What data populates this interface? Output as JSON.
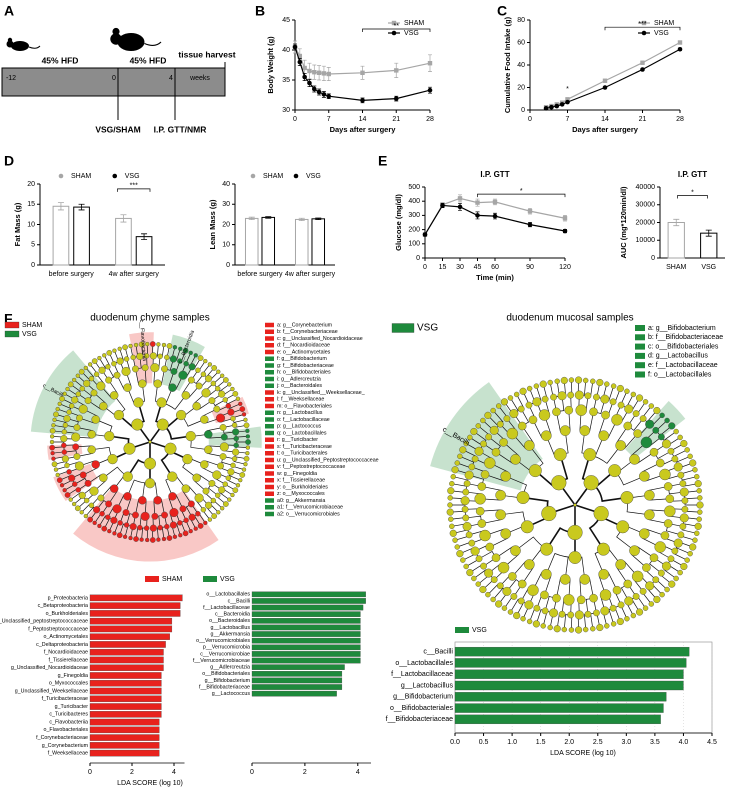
{
  "panel_labels": [
    "A",
    "B",
    "C",
    "D",
    "E",
    "F"
  ],
  "timeline": {
    "diet": [
      "45% HFD",
      "45% HFD"
    ],
    "ticks": [
      "-12",
      "0",
      "4"
    ],
    "unit": "weeks",
    "end": "tissue harvest",
    "events": [
      "VSG/SHAM",
      "I.P. GTT/NMR"
    ]
  },
  "chart_data": [
    {
      "type": "line",
      "ylabel": "Body Weight (g)",
      "xlabel": "Days after surgery",
      "legend": "upper right",
      "x": [
        0,
        1,
        2,
        3,
        4,
        5,
        6,
        7,
        14,
        21,
        28
      ],
      "xlim": [
        0,
        28
      ],
      "xticks": [
        0,
        7,
        14,
        21,
        28
      ],
      "ylim": [
        30,
        45
      ],
      "yticks": [
        30,
        35,
        40,
        45
      ],
      "series": [
        {
          "name": "SHAM",
          "color": "#a6a6a6",
          "marker": "square",
          "values": [
            40.5,
            39,
            37,
            36.5,
            36.3,
            36.2,
            36.1,
            36,
            36.2,
            36.6,
            37.8
          ],
          "errors": [
            1,
            1.2,
            1.3,
            1.3,
            1.2,
            1.2,
            1.2,
            1.1,
            1.1,
            1.2,
            1.4
          ]
        },
        {
          "name": "VSG",
          "color": "#000000",
          "marker": "circle",
          "values": [
            40.5,
            38,
            35.5,
            34.5,
            33.5,
            33,
            32.6,
            32.3,
            31.6,
            31.9,
            33.3
          ],
          "errors": [
            0.5,
            0.6,
            0.6,
            0.6,
            0.5,
            0.5,
            0.5,
            0.4,
            0.4,
            0.4,
            0.5
          ]
        }
      ],
      "annotations": [
        "**"
      ]
    },
    {
      "type": "line",
      "ylabel": "Cumulative Food Intake (g)",
      "xlabel": "Days after surgery",
      "legend": "upper right",
      "x": [
        3,
        4,
        5,
        6,
        7,
        14,
        21,
        28
      ],
      "xlim": [
        0,
        28
      ],
      "xticks": [
        0,
        7,
        14,
        21,
        28
      ],
      "ylim": [
        0,
        80
      ],
      "yticks": [
        0,
        20,
        40,
        60,
        80
      ],
      "series": [
        {
          "name": "SHAM",
          "color": "#a6a6a6",
          "marker": "square",
          "values": [
            2.5,
            3.5,
            5,
            6.5,
            9.5,
            26,
            42,
            60
          ],
          "errors": [
            0.3,
            0.3,
            0.4,
            0.4,
            0.5,
            0.8,
            1,
            1.2
          ]
        },
        {
          "name": "VSG",
          "color": "#000000",
          "marker": "circle",
          "values": [
            1.5,
            2.5,
            3.5,
            5,
            7,
            20,
            36,
            54
          ],
          "errors": [
            0.2,
            0.3,
            0.3,
            0.3,
            0.4,
            0.6,
            0.8,
            1
          ]
        }
      ],
      "annotations": [
        "*",
        "***"
      ]
    },
    {
      "type": "bar",
      "ylabel": "Fat Mass (g)",
      "legend": "top",
      "categories": [
        "before surgery",
        "4w after surgery"
      ],
      "ylim": [
        0,
        20
      ],
      "yticks": [
        0,
        5,
        10,
        15,
        20
      ],
      "series": [
        {
          "name": "SHAM",
          "color": "#a6a6a6",
          "values": [
            14.5,
            11.5
          ],
          "errors": [
            0.9,
            0.9
          ]
        },
        {
          "name": "VSG",
          "color": "#000000",
          "values": [
            14.3,
            7
          ],
          "errors": [
            0.7,
            0.7
          ]
        }
      ],
      "annotations": [
        "***"
      ]
    },
    {
      "type": "bar",
      "ylabel": "Lean Mass (g)",
      "legend": "top",
      "categories": [
        "before surgery",
        "4w after surgery"
      ],
      "ylim": [
        0,
        40
      ],
      "yticks": [
        0,
        10,
        20,
        30,
        40
      ],
      "series": [
        {
          "name": "SHAM",
          "color": "#a6a6a6",
          "values": [
            23,
            22.5
          ],
          "errors": [
            0.6,
            0.6
          ]
        },
        {
          "name": "VSG",
          "color": "#000000",
          "values": [
            23.5,
            22.8
          ],
          "errors": [
            0.4,
            0.4
          ]
        }
      ]
    },
    {
      "type": "line",
      "title": "I.P. GTT",
      "ylabel": "Glucose (mg/dl)",
      "xlabel": "Time (min)",
      "x": [
        0,
        15,
        30,
        45,
        60,
        90,
        120
      ],
      "xlim": [
        0,
        120
      ],
      "xticks": [
        0,
        15,
        30,
        45,
        60,
        90,
        120
      ],
      "ylim": [
        0,
        500
      ],
      "yticks": [
        0,
        100,
        200,
        300,
        400,
        500
      ],
      "series": [
        {
          "name": "SHAM",
          "color": "#a6a6a6",
          "marker": "square",
          "values": [
            165,
            375,
            420,
            390,
            395,
            330,
            280
          ],
          "errors": [
            10,
            15,
            25,
            25,
            20,
            20,
            20
          ]
        },
        {
          "name": "VSG",
          "color": "#000000",
          "marker": "circle",
          "values": [
            165,
            370,
            360,
            300,
            295,
            235,
            190
          ],
          "errors": [
            10,
            15,
            25,
            25,
            20,
            15,
            12
          ]
        }
      ],
      "annotations": [
        "*"
      ]
    },
    {
      "type": "bar",
      "title": "I.P. GTT",
      "ylabel": "AUC (mg*120min/dl)",
      "categories": [
        "SHAM",
        "VSG"
      ],
      "values": [
        20000,
        14000
      ],
      "errors": [
        1800,
        1700
      ],
      "colors": [
        "#a6a6a6",
        "#000000"
      ],
      "ylim": [
        0,
        40000
      ],
      "yticks": [
        0,
        10000,
        20000,
        30000,
        40000
      ],
      "annotations": [
        "*"
      ]
    },
    {
      "type": "hbar",
      "xlabel": "LDA SCORE (log 10)",
      "xlim": [
        0,
        4.5
      ],
      "xticks": [
        0,
        2,
        4
      ],
      "categories": [
        "p_Proteobacteria",
        "c_Betaproteobacteria",
        "o_Burkholderiales",
        "g_Unclassified_peptostreptococcaceae",
        "f_Peptostreptococcaceae",
        "o_Actinomycetales",
        "c_Deltaproteobacteria",
        "f_Nocardioidaceae",
        "f_Tissierellaceae",
        "g_Unclassified_Nocardioidaceae",
        "g_Finegoldia",
        "o_Myxococcales",
        "g_Unclassified_Weeksellaceae",
        "f_Turicibacteraceae",
        "g_Turicibacter",
        "c_Turicibacteres",
        "c_Flavobacteriia",
        "o_Flavobacteriales",
        "f_Corynebacteriaceae",
        "g_Corynebacterium",
        "f_Weeksellaceae"
      ],
      "series": [
        {
          "name": "SHAM",
          "color": "#e8221d",
          "values": [
            4.4,
            4.3,
            4.3,
            3.9,
            3.9,
            3.8,
            3.6,
            3.5,
            3.5,
            3.5,
            3.4,
            3.4,
            3.4,
            3.4,
            3.4,
            3.4,
            3.3,
            3.3,
            3.3,
            3.3,
            3.3
          ]
        }
      ]
    },
    {
      "type": "hbar",
      "xlim": [
        0,
        4.5
      ],
      "xticks": [
        0,
        2,
        4
      ],
      "categories": [
        "o__Lactobacillales",
        "c__Bacilli",
        "f__Lactobacillaceae",
        "c__Bacteroidia",
        "o__Bacteroidales",
        "g__Lactobacillus",
        "g__Akkermansia",
        "o__Verrucomicrobiales",
        "p__Verrucomicrobia",
        "c__Verrucomicrobiae",
        "f__Verrucomicrobiaceae",
        "g__Adlercreutzia",
        "o__Bifidobacteriales",
        "g__Bifidobacterium",
        "f__Bifidobacteriaceae",
        "g__Lactococcus"
      ],
      "series": [
        {
          "name": "VSG",
          "color": "#1e8a3c",
          "values": [
            4.3,
            4.3,
            4.2,
            4.1,
            4.1,
            4.1,
            4.1,
            4.1,
            4.1,
            4.1,
            4.1,
            3.5,
            3.4,
            3.4,
            3.4,
            3.2
          ]
        }
      ]
    },
    {
      "type": "hbar",
      "xlabel": "LDA SCORE (log 10)",
      "xlim": [
        0,
        4.5
      ],
      "xticks": [
        {
          "value": 0,
          "label": "0.0"
        },
        0.5,
        {
          "value": 1,
          "label": "1.0"
        },
        1.5,
        {
          "value": 2,
          "label": "2.0"
        },
        2.5,
        {
          "value": 3,
          "label": "3.0"
        },
        3.5,
        {
          "value": 4,
          "label": "4.0"
        },
        4.5
      ],
      "categories": [
        "c__Bacilli",
        "o__Lactobacillales",
        "f__Lactobacillaceae",
        "g__Lactobacillus",
        "g__Bifidobacterium",
        "o__Bifidobacteriales",
        "f__Bifidobacteriaceae"
      ],
      "series": [
        {
          "name": "VSG",
          "color": "#1e8a3c",
          "values": [
            4.1,
            4.05,
            4,
            4,
            3.7,
            3.65,
            3.6
          ]
        }
      ]
    }
  ],
  "cladograms": [
    {
      "title": "duodenum chyme samples",
      "groups": [
        {
          "name": "SHAM",
          "color": "#e8221d"
        },
        {
          "name": "VSG",
          "color": "#1e8a3c"
        }
      ],
      "legend": [
        {
          "label": "a: g__Corynebacterium",
          "color": "#e8221d"
        },
        {
          "label": "b: f__Corynebacteriaceae",
          "color": "#e8221d"
        },
        {
          "label": "c: g__Unclassified_Nocardioidaceae",
          "color": "#e8221d"
        },
        {
          "label": "d: f__Nocardioidaceae",
          "color": "#e8221d"
        },
        {
          "label": "e: o__Actinomycetales",
          "color": "#e8221d"
        },
        {
          "label": "f: g__Bifidobacterium",
          "color": "#1e8a3c"
        },
        {
          "label": "g: f__Bifidobacteriaceae",
          "color": "#1e8a3c"
        },
        {
          "label": "h: o__Bifidobacteriales",
          "color": "#1e8a3c"
        },
        {
          "label": "i: g__Adlercreutzia",
          "color": "#1e8a3c"
        },
        {
          "label": "j: o__Bacteroidales",
          "color": "#1e8a3c"
        },
        {
          "label": "k: g__Unclassified__Weeksellaceae_",
          "color": "#e8221d"
        },
        {
          "label": "l: f__Weeksellaceae",
          "color": "#e8221d"
        },
        {
          "label": "m: o__Flavobacteriales",
          "color": "#e8221d"
        },
        {
          "label": "n: g__Lactobacillus",
          "color": "#1e8a3c"
        },
        {
          "label": "o: f__Lactobacillaceae",
          "color": "#1e8a3c"
        },
        {
          "label": "p: g__Lactococcus",
          "color": "#1e8a3c"
        },
        {
          "label": "q: o__Lactobacillales",
          "color": "#1e8a3c"
        },
        {
          "label": "r: g__Turicibacter",
          "color": "#e8221d"
        },
        {
          "label": "s: f__Turicibacteraceae",
          "color": "#e8221d"
        },
        {
          "label": "t: o__Turicibacterales",
          "color": "#e8221d"
        },
        {
          "label": "u: g__Unclassified_Peptostreptococcaceae",
          "color": "#e8221d"
        },
        {
          "label": "v: f__Peptostreptococcaceae",
          "color": "#e8221d"
        },
        {
          "label": "w: g__Finegoldia",
          "color": "#e8221d"
        },
        {
          "label": "x: f__Tissierellaceae",
          "color": "#e8221d"
        },
        {
          "label": "y: o__Burkholderiales",
          "color": "#e8221d"
        },
        {
          "label": "z: o__Myxococcales",
          "color": "#e8221d"
        },
        {
          "label": "a0: g__Akkermansia",
          "color": "#1e8a3c"
        },
        {
          "label": "a1: f__Verrucomicrobiaceae",
          "color": "#1e8a3c"
        },
        {
          "label": "a2: o__Verrucomicrobiales",
          "color": "#1e8a3c"
        }
      ],
      "clade_labels": [
        "c__Bacilli",
        "c__Flavobacteriia",
        "c__Bacteroidia"
      ]
    },
    {
      "title": "duodenum mucosal samples",
      "groups": [
        {
          "name": "VSG",
          "color": "#1e8a3c"
        }
      ],
      "legend": [
        {
          "label": "a: g__Bifidobacterium",
          "color": "#1e8a3c"
        },
        {
          "label": "b: f__Bifidobacteriaceae",
          "color": "#1e8a3c"
        },
        {
          "label": "c: o__Bifidobacteriales",
          "color": "#1e8a3c"
        },
        {
          "label": "d: g__Lactobacillus",
          "color": "#1e8a3c"
        },
        {
          "label": "e: f__Lactobacillaceae",
          "color": "#1e8a3c"
        },
        {
          "label": "f: o__Lactobacillales",
          "color": "#1e8a3c"
        }
      ],
      "clade_labels": [
        "c__Bacilli"
      ]
    }
  ]
}
